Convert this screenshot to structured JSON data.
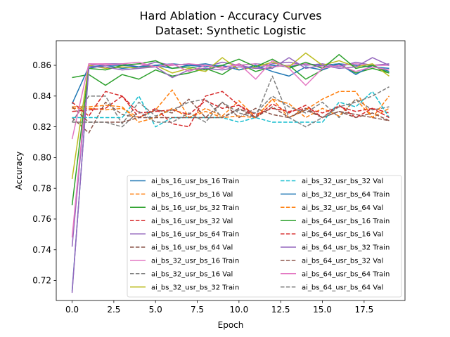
{
  "chart_data": {
    "type": "line",
    "title": "Hard Ablation - Accuracy Curves",
    "subtitle": "Dataset: Synthetic Logistic",
    "xlabel": "Epoch",
    "ylabel": "Accuracy",
    "xlim": [
      -0.95,
      19.95
    ],
    "ylim": [
      0.707,
      0.876
    ],
    "xticks": [
      0.0,
      2.5,
      5.0,
      7.5,
      10.0,
      12.5,
      15.0,
      17.5
    ],
    "xtick_labels": [
      "0.0",
      "2.5",
      "5.0",
      "7.5",
      "10.0",
      "12.5",
      "15.0",
      "17.5"
    ],
    "yticks": [
      0.72,
      0.74,
      0.76,
      0.78,
      0.8,
      0.82,
      0.84,
      0.86
    ],
    "ytick_labels": [
      "0.72",
      "0.74",
      "0.76",
      "0.78",
      "0.80",
      "0.82",
      "0.84",
      "0.86"
    ],
    "grid": false,
    "legend_position": "lower-right",
    "x": [
      0,
      1,
      2,
      3,
      4,
      5,
      6,
      7,
      8,
      9,
      10,
      11,
      12,
      13,
      14,
      15,
      16,
      17,
      18,
      19
    ],
    "series": [
      {
        "name": "ai_bs_16_usr_bs_16 Train",
        "color": "#1f77b4",
        "dash": "solid",
        "values": [
          0.713,
          0.858,
          0.86,
          0.858,
          0.859,
          0.86,
          0.861,
          0.86,
          0.861,
          0.859,
          0.86,
          0.861,
          0.86,
          0.859,
          0.861,
          0.86,
          0.861,
          0.86,
          0.859,
          0.858
        ]
      },
      {
        "name": "ai_bs_16_usr_bs_16 Val",
        "color": "#ff7f0e",
        "dash": "dashed",
        "values": [
          0.832,
          0.832,
          0.831,
          0.832,
          0.826,
          0.831,
          0.844,
          0.826,
          0.832,
          0.827,
          0.837,
          0.826,
          0.838,
          0.835,
          0.826,
          0.832,
          0.827,
          0.838,
          0.826,
          0.832
        ]
      },
      {
        "name": "ai_bs_16_usr_bs_32 Train",
        "color": "#2ca02c",
        "dash": "solid",
        "values": [
          0.852,
          0.854,
          0.847,
          0.854,
          0.851,
          0.857,
          0.853,
          0.855,
          0.858,
          0.854,
          0.861,
          0.856,
          0.859,
          0.86,
          0.851,
          0.857,
          0.861,
          0.855,
          0.858,
          0.855
        ]
      },
      {
        "name": "ai_bs_16_usr_bs_32 Val",
        "color": "#d62728",
        "dash": "dashed",
        "values": [
          0.83,
          0.831,
          0.832,
          0.84,
          0.829,
          0.83,
          0.831,
          0.828,
          0.837,
          0.832,
          0.834,
          0.828,
          0.832,
          0.83,
          0.832,
          0.829,
          0.833,
          0.83,
          0.832,
          0.829
        ]
      },
      {
        "name": "ai_bs_16_usr_bs_64 Train",
        "color": "#9467bd",
        "dash": "solid",
        "values": [
          0.742,
          0.86,
          0.861,
          0.861,
          0.859,
          0.862,
          0.86,
          0.861,
          0.859,
          0.862,
          0.86,
          0.858,
          0.861,
          0.862,
          0.86,
          0.861,
          0.859,
          0.862,
          0.86,
          0.861
        ]
      },
      {
        "name": "ai_bs_16_usr_bs_64 Val",
        "color": "#8c564b",
        "dash": "dashed",
        "values": [
          0.826,
          0.816,
          0.836,
          0.828,
          0.826,
          0.831,
          0.829,
          0.838,
          0.826,
          0.836,
          0.826,
          0.832,
          0.828,
          0.826,
          0.832,
          0.826,
          0.83,
          0.828,
          0.826,
          0.824
        ]
      },
      {
        "name": "ai_bs_32_usr_bs_16 Train",
        "color": "#e377c2",
        "dash": "solid",
        "values": [
          0.748,
          0.861,
          0.861,
          0.86,
          0.861,
          0.859,
          0.86,
          0.861,
          0.86,
          0.859,
          0.86,
          0.861,
          0.859,
          0.86,
          0.861,
          0.859,
          0.86,
          0.861,
          0.86,
          0.86
        ]
      },
      {
        "name": "ai_bs_32_usr_bs_16 Val",
        "color": "#7f7f7f",
        "dash": "dashed",
        "values": [
          0.823,
          0.84,
          0.84,
          0.822,
          0.836,
          0.827,
          0.831,
          0.836,
          0.838,
          0.826,
          0.831,
          0.829,
          0.84,
          0.833,
          0.829,
          0.836,
          0.826,
          0.838,
          0.831,
          0.833
        ]
      },
      {
        "name": "ai_bs_32_usr_bs_32 Train",
        "color": "#bcbd22",
        "dash": "solid",
        "values": [
          0.786,
          0.86,
          0.858,
          0.859,
          0.858,
          0.86,
          0.855,
          0.858,
          0.856,
          0.865,
          0.857,
          0.859,
          0.862,
          0.859,
          0.868,
          0.86,
          0.863,
          0.859,
          0.861,
          0.853
        ]
      },
      {
        "name": "ai_bs_32_usr_bs_32 Val",
        "color": "#17becf",
        "dash": "dashed",
        "values": [
          0.826,
          0.826,
          0.826,
          0.826,
          0.84,
          0.82,
          0.826,
          0.826,
          0.826,
          0.826,
          0.823,
          0.826,
          0.823,
          0.823,
          0.823,
          0.823,
          0.836,
          0.833,
          0.843,
          0.826
        ]
      },
      {
        "name": "ai_bs_32_usr_bs_64 Train",
        "color": "#1f77b4",
        "dash": "solid",
        "values": [
          0.835,
          0.859,
          0.86,
          0.86,
          0.859,
          0.86,
          0.858,
          0.86,
          0.859,
          0.86,
          0.857,
          0.86,
          0.856,
          0.853,
          0.859,
          0.857,
          0.861,
          0.854,
          0.86,
          0.856
        ]
      },
      {
        "name": "ai_bs_32_usr_bs_64 Val",
        "color": "#ff7f0e",
        "dash": "dashed",
        "values": [
          0.833,
          0.833,
          0.834,
          0.833,
          0.823,
          0.826,
          0.832,
          0.826,
          0.83,
          0.826,
          0.827,
          0.826,
          0.838,
          0.826,
          0.831,
          0.838,
          0.843,
          0.843,
          0.826,
          0.84
        ]
      },
      {
        "name": "ai_bs_64_usr_bs_16 Train",
        "color": "#2ca02c",
        "dash": "solid",
        "values": [
          0.769,
          0.858,
          0.857,
          0.86,
          0.861,
          0.863,
          0.858,
          0.859,
          0.857,
          0.86,
          0.864,
          0.859,
          0.864,
          0.858,
          0.862,
          0.858,
          0.867,
          0.858,
          0.86,
          0.855
        ]
      },
      {
        "name": "ai_bs_64_usr_bs_16 Val",
        "color": "#d62728",
        "dash": "dashed",
        "values": [
          0.836,
          0.827,
          0.843,
          0.84,
          0.826,
          0.832,
          0.822,
          0.82,
          0.84,
          0.843,
          0.834,
          0.826,
          0.835,
          0.829,
          0.834,
          0.826,
          0.834,
          0.826,
          0.832,
          0.826
        ]
      },
      {
        "name": "ai_bs_64_usr_bs_32 Train",
        "color": "#9467bd",
        "dash": "solid",
        "values": [
          0.712,
          0.859,
          0.859,
          0.857,
          0.858,
          0.859,
          0.852,
          0.857,
          0.858,
          0.857,
          0.859,
          0.858,
          0.858,
          0.865,
          0.858,
          0.86,
          0.858,
          0.859,
          0.865,
          0.86
        ]
      },
      {
        "name": "ai_bs_64_usr_bs_32 Val",
        "color": "#8c564b",
        "dash": "dashed",
        "values": [
          0.833,
          0.823,
          0.823,
          0.823,
          0.826,
          0.826,
          0.826,
          0.826,
          0.826,
          0.826,
          0.832,
          0.826,
          0.833,
          0.826,
          0.831,
          0.826,
          0.83,
          0.826,
          0.829,
          0.824
        ]
      },
      {
        "name": "ai_bs_64_usr_bs_64 Train",
        "color": "#e377c2",
        "dash": "solid",
        "values": [
          0.812,
          0.861,
          0.86,
          0.861,
          0.862,
          0.859,
          0.861,
          0.856,
          0.86,
          0.858,
          0.861,
          0.851,
          0.863,
          0.858,
          0.847,
          0.858,
          0.86,
          0.856,
          0.859,
          0.857
        ]
      },
      {
        "name": "ai_bs_64_usr_bs_64 Val",
        "color": "#7f7f7f",
        "dash": "dashed",
        "values": [
          0.823,
          0.823,
          0.823,
          0.82,
          0.83,
          0.823,
          0.823,
          0.829,
          0.823,
          0.836,
          0.829,
          0.826,
          0.853,
          0.826,
          0.82,
          0.826,
          0.833,
          0.836,
          0.84,
          0.846
        ]
      }
    ]
  }
}
